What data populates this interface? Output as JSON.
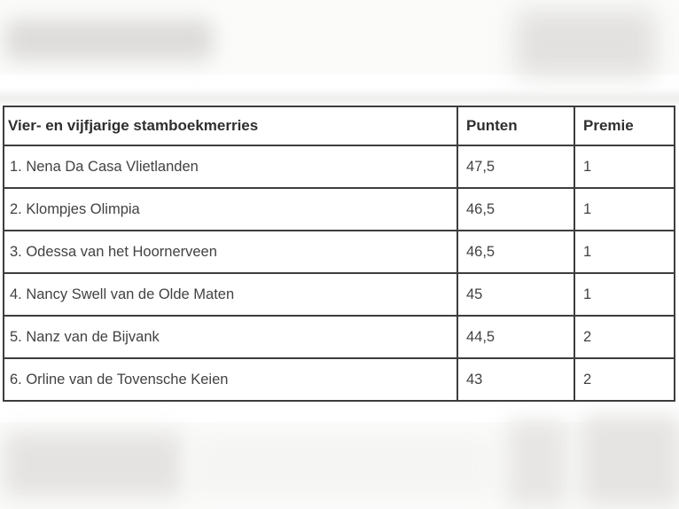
{
  "table": {
    "columns": [
      {
        "key": "name",
        "label": "Vier- en vijfjarige stamboekmerries"
      },
      {
        "key": "punten",
        "label": "Punten"
      },
      {
        "key": "premie",
        "label": "Premie"
      }
    ],
    "rows": [
      {
        "name": "1. Nena Da Casa Vlietlanden",
        "punten": "47,5",
        "premie": "1"
      },
      {
        "name": "2. Klompjes Olimpia",
        "punten": "46,5",
        "premie": "1"
      },
      {
        "name": "3. Odessa van het Hoornerveen",
        "punten": "46,5",
        "premie": "1"
      },
      {
        "name": "4. Nancy Swell van de Olde Maten",
        "punten": "45",
        "premie": "1"
      },
      {
        "name": "5. Nanz van de Bijvank",
        "punten": "44,5",
        "premie": "2"
      },
      {
        "name": "6. Orline van de Tovensche Keien",
        "punten": "43",
        "premie": "2"
      }
    ]
  },
  "style": {
    "table_border_color": "#3d3d3d",
    "header_text_color": "#2f2f2f",
    "cell_text_color": "#424242",
    "content_background": "#ffffff",
    "page_background": "#fbfbfa",
    "blur_blob_color": "#e2e1df"
  }
}
